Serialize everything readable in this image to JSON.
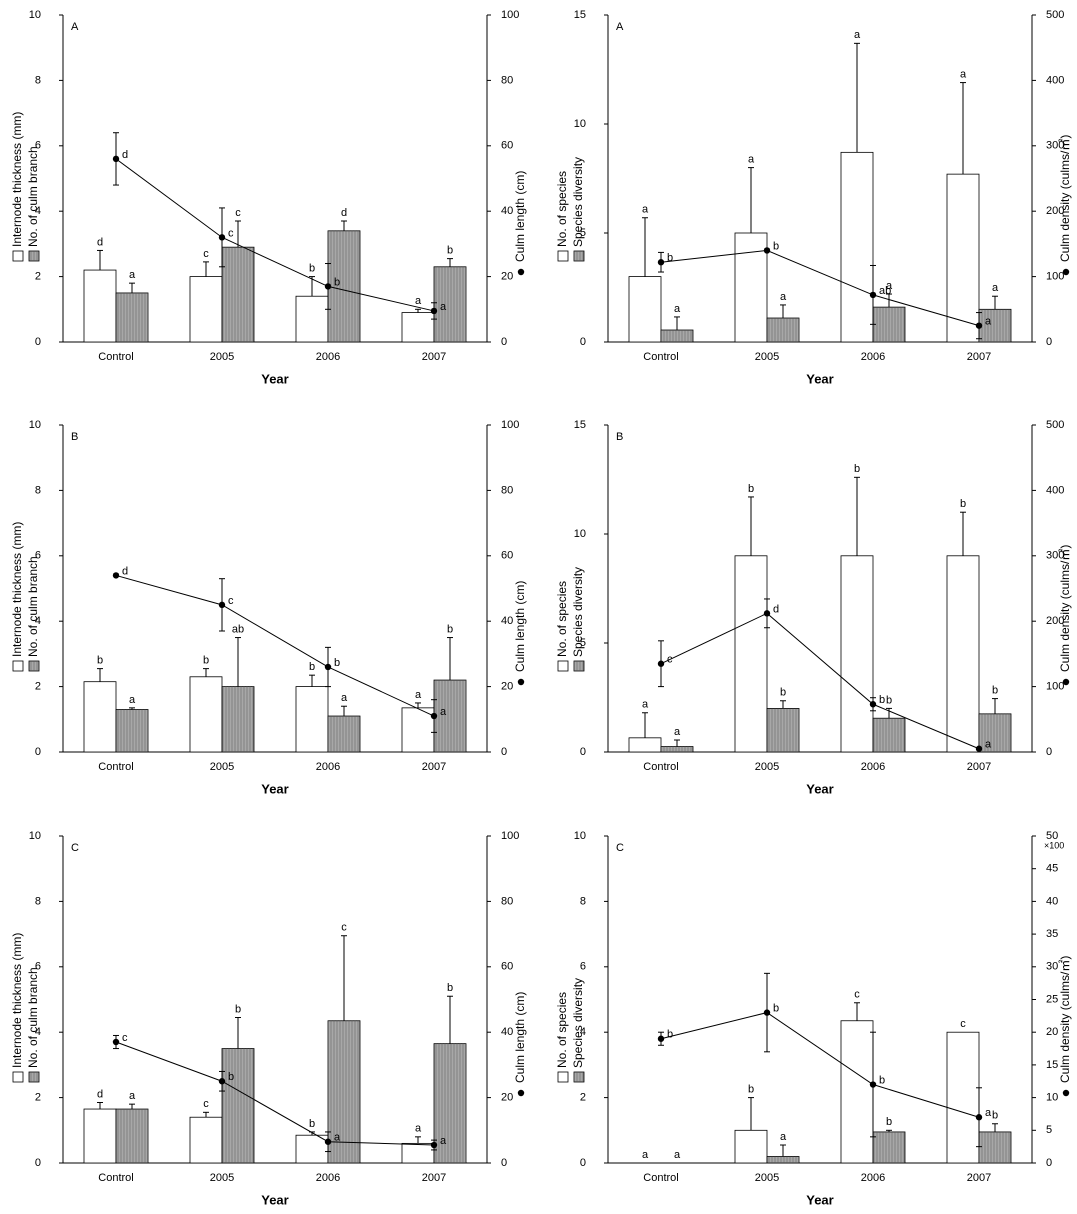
{
  "chart_data": [
    {
      "type": "bar",
      "panel_label": "A",
      "xlabel": "Year",
      "categories": [
        "Control",
        "2005",
        "2006",
        "2007"
      ],
      "ylim": [
        0,
        10
      ],
      "yticks": [
        0,
        2,
        4,
        6,
        8,
        10
      ],
      "y2lim": [
        0,
        100
      ],
      "y2ticks": [
        0,
        20,
        40,
        60,
        80,
        100
      ],
      "series": [
        {
          "name": "Internode thickness (mm)",
          "color": "#ffffff",
          "values": [
            2.2,
            2.0,
            1.4,
            0.9
          ],
          "errors": [
            0.6,
            0.45,
            0.6,
            0.1
          ],
          "letters": [
            "d",
            "c",
            "b",
            "a"
          ]
        },
        {
          "name": "No. of culm branch",
          "color": "#a8a8a8",
          "values": [
            1.5,
            2.9,
            3.4,
            2.3
          ],
          "errors": [
            0.3,
            0.8,
            0.3,
            0.25
          ],
          "letters": [
            "a",
            "c",
            "d",
            "b"
          ]
        },
        {
          "name": "Culm length (cm)",
          "type": "line",
          "axis": "y2",
          "color": "#000000",
          "values": [
            56,
            32,
            17,
            9.5
          ],
          "errors": [
            8,
            9,
            7,
            2.5
          ],
          "letters": [
            "d",
            "c",
            "b",
            "a"
          ]
        }
      ]
    },
    {
      "type": "bar",
      "panel_label": "A",
      "xlabel": "Year",
      "categories": [
        "Control",
        "2005",
        "2006",
        "2007"
      ],
      "ylim": [
        0,
        15
      ],
      "yticks": [
        0,
        5,
        10,
        15
      ],
      "y2lim": [
        0,
        500
      ],
      "y2ticks": [
        0,
        100,
        200,
        300,
        400,
        500
      ],
      "series": [
        {
          "name": "No. of species",
          "color": "#ffffff",
          "values": [
            3.0,
            5.0,
            8.7,
            7.7
          ],
          "errors": [
            2.7,
            3.0,
            5.0,
            4.2
          ],
          "letters": [
            "a",
            "a",
            "a",
            "a"
          ]
        },
        {
          "name": "Species diversity",
          "color": "#a8a8a8",
          "values": [
            0.55,
            1.1,
            1.6,
            1.5
          ],
          "errors": [
            0.6,
            0.6,
            0.6,
            0.6
          ],
          "letters": [
            "a",
            "a",
            "a",
            "a"
          ]
        },
        {
          "name": "Culm density (culms/㎡)",
          "type": "line",
          "axis": "y2",
          "color": "#000000",
          "values": [
            122,
            140,
            72,
            25
          ],
          "errors": [
            15,
            0,
            45,
            20
          ],
          "letters": [
            "b",
            "b",
            "ab",
            "a"
          ]
        }
      ]
    },
    {
      "type": "bar",
      "panel_label": "B",
      "xlabel": "Year",
      "categories": [
        "Control",
        "2005",
        "2006",
        "2007"
      ],
      "ylim": [
        0,
        10
      ],
      "yticks": [
        0,
        2,
        4,
        6,
        8,
        10
      ],
      "y2lim": [
        0,
        100
      ],
      "y2ticks": [
        0,
        20,
        40,
        60,
        80,
        100
      ],
      "series": [
        {
          "name": "Internode thickness (mm)",
          "color": "#ffffff",
          "values": [
            2.15,
            2.3,
            2.0,
            1.35
          ],
          "errors": [
            0.4,
            0.25,
            0.35,
            0.15
          ],
          "letters": [
            "b",
            "b",
            "b",
            "a"
          ]
        },
        {
          "name": "No. of culm branch",
          "color": "#a8a8a8",
          "values": [
            1.3,
            2.0,
            1.1,
            2.2
          ],
          "errors": [
            0.05,
            1.5,
            0.3,
            1.3
          ],
          "letters": [
            "a",
            "ab",
            "a",
            "b"
          ]
        },
        {
          "name": "Culm length (cm)",
          "type": "line",
          "axis": "y2",
          "color": "#000000",
          "values": [
            54,
            45,
            26,
            11
          ],
          "errors": [
            0,
            8,
            6,
            5
          ],
          "letters": [
            "d",
            "c",
            "b",
            "a"
          ]
        }
      ]
    },
    {
      "type": "bar",
      "panel_label": "B",
      "xlabel": "Year",
      "categories": [
        "Control",
        "2005",
        "2006",
        "2007"
      ],
      "ylim": [
        0,
        15
      ],
      "yticks": [
        0,
        5,
        10,
        15
      ],
      "y2lim": [
        0,
        500
      ],
      "y2ticks": [
        0,
        100,
        200,
        300,
        400,
        500
      ],
      "series": [
        {
          "name": "No. of species",
          "color": "#ffffff",
          "values": [
            0.65,
            9.0,
            9.0,
            9.0
          ],
          "errors": [
            1.15,
            2.7,
            3.6,
            2.0
          ],
          "letters": [
            "a",
            "b",
            "b",
            "b"
          ]
        },
        {
          "name": "Species diversity",
          "color": "#a8a8a8",
          "values": [
            0.25,
            2.0,
            1.55,
            1.75
          ],
          "errors": [
            0.3,
            0.35,
            0.45,
            0.7
          ],
          "letters": [
            "a",
            "b",
            "b",
            "b"
          ]
        },
        {
          "name": "Culm density (culms/㎡)",
          "type": "line",
          "axis": "y2",
          "color": "#000000",
          "values": [
            135,
            212,
            73,
            5
          ],
          "errors": [
            35,
            22,
            10,
            0
          ],
          "letters": [
            "c",
            "d",
            "b",
            "a"
          ]
        }
      ]
    },
    {
      "type": "bar",
      "panel_label": "C",
      "xlabel": "Year",
      "categories": [
        "Control",
        "2005",
        "2006",
        "2007"
      ],
      "ylim": [
        0,
        10
      ],
      "yticks": [
        0,
        2,
        4,
        6,
        8,
        10
      ],
      "y2lim": [
        0,
        100
      ],
      "y2ticks": [
        0,
        20,
        40,
        60,
        80,
        100
      ],
      "series": [
        {
          "name": "Internode thickness (mm)",
          "color": "#ffffff",
          "values": [
            1.65,
            1.4,
            0.85,
            0.6
          ],
          "errors": [
            0.2,
            0.15,
            0.1,
            0.2
          ],
          "letters": [
            "d",
            "c",
            "b",
            "a"
          ]
        },
        {
          "name": "No. of culm branch",
          "color": "#a8a8a8",
          "values": [
            1.65,
            3.5,
            4.35,
            3.65
          ],
          "errors": [
            0.15,
            0.95,
            2.6,
            1.45
          ],
          "letters": [
            "a",
            "b",
            "c",
            "b"
          ]
        },
        {
          "name": "Culm length (cm)",
          "type": "line",
          "axis": "y2",
          "color": "#000000",
          "values": [
            37,
            25,
            6.5,
            5.5
          ],
          "errors": [
            2,
            3,
            3,
            1.5
          ],
          "letters": [
            "c",
            "b",
            "a",
            "a"
          ]
        }
      ]
    },
    {
      "type": "bar",
      "panel_label": "C",
      "xlabel": "Year",
      "categories": [
        "Control",
        "2005",
        "2006",
        "2007"
      ],
      "ylim": [
        0,
        10
      ],
      "yticks": [
        0,
        2,
        4,
        6,
        8,
        10
      ],
      "y2lim": [
        0,
        50
      ],
      "y2ticks": [
        0,
        5,
        10,
        15,
        20,
        25,
        30,
        35,
        40,
        45,
        50
      ],
      "y2_multiplier": "×100",
      "series": [
        {
          "name": "No. of species",
          "color": "#ffffff",
          "values": [
            0,
            1.0,
            4.35,
            4.0
          ],
          "errors": [
            0,
            1.0,
            0.55,
            0
          ],
          "letters": [
            "a",
            "b",
            "c",
            "c"
          ]
        },
        {
          "name": "Species diversity",
          "color": "#a8a8a8",
          "values": [
            0,
            0.2,
            0.95,
            0.95
          ],
          "errors": [
            0,
            0.35,
            0.05,
            0.25
          ],
          "letters": [
            "a",
            "a",
            "b",
            "b"
          ]
        },
        {
          "name": "Culm density (culms/㎡)",
          "type": "line",
          "axis": "y2",
          "color": "#000000",
          "values": [
            19,
            23,
            12,
            7
          ],
          "errors": [
            1,
            6,
            8,
            4.5
          ],
          "letters": [
            "b",
            "b",
            "b",
            "a"
          ]
        }
      ]
    }
  ]
}
